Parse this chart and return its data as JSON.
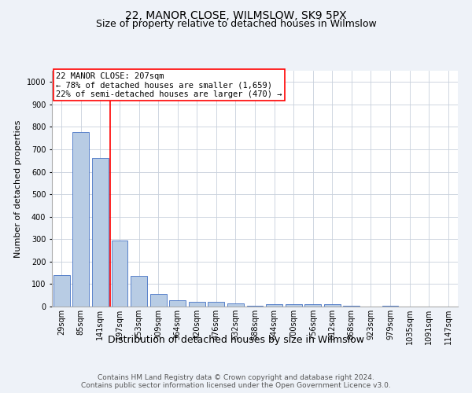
{
  "title": "22, MANOR CLOSE, WILMSLOW, SK9 5PX",
  "subtitle": "Size of property relative to detached houses in Wilmslow",
  "xlabel": "Distribution of detached houses by size in Wilmslow",
  "ylabel": "Number of detached properties",
  "footer_line1": "Contains HM Land Registry data © Crown copyright and database right 2024.",
  "footer_line2": "Contains public sector information licensed under the Open Government Licence v3.0.",
  "bar_labels": [
    "29sqm",
    "85sqm",
    "141sqm",
    "197sqm",
    "253sqm",
    "309sqm",
    "364sqm",
    "420sqm",
    "476sqm",
    "532sqm",
    "588sqm",
    "644sqm",
    "700sqm",
    "756sqm",
    "812sqm",
    "868sqm",
    "923sqm",
    "979sqm",
    "1035sqm",
    "1091sqm",
    "1147sqm"
  ],
  "bar_values": [
    140,
    778,
    660,
    295,
    137,
    55,
    28,
    20,
    20,
    13,
    5,
    10,
    10,
    10,
    10,
    5,
    0,
    5,
    0,
    0,
    0
  ],
  "bar_color": "#b8cce4",
  "bar_edge_color": "#4472c4",
  "annotation_text_line1": "22 MANOR CLOSE: 207sqm",
  "annotation_text_line2": "← 78% of detached houses are smaller (1,659)",
  "annotation_text_line3": "22% of semi-detached houses are larger (470) →",
  "annotation_box_color": "white",
  "annotation_box_edge_color": "red",
  "vline_color": "red",
  "vline_x": 2.5,
  "ylim": [
    0,
    1050
  ],
  "yticks": [
    0,
    100,
    200,
    300,
    400,
    500,
    600,
    700,
    800,
    900,
    1000
  ],
  "background_color": "#eef2f8",
  "plot_background_color": "white",
  "grid_color": "#c8d0dc",
  "title_fontsize": 10,
  "subtitle_fontsize": 9,
  "xlabel_fontsize": 9,
  "ylabel_fontsize": 8,
  "tick_fontsize": 7,
  "annotation_fontsize": 7.5,
  "footer_fontsize": 6.5
}
